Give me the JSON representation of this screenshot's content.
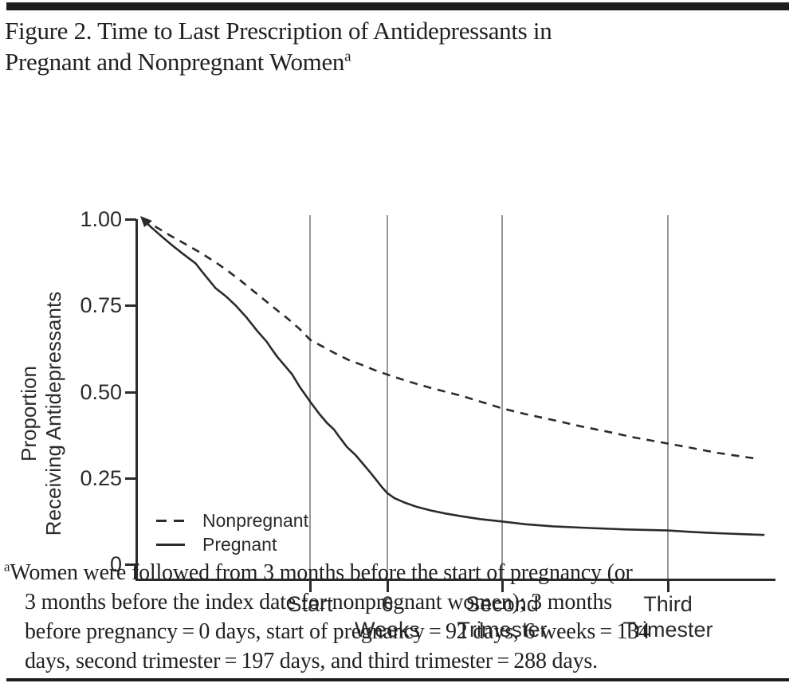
{
  "header": {
    "title_line1": "Figure 2. Time to Last Prescription of Antidepressants in",
    "title_line2": "Pregnant and Nonpregnant Women",
    "title_superscript": "a"
  },
  "chart_data": {
    "type": "line",
    "title": "Time to Last Prescription of Antidepressants in Pregnant and Nonpregnant Women",
    "ylabel_line1": "Proportion",
    "ylabel_line2": "Receiving Antidepressants",
    "x_unit": "days",
    "xlim": [
      0,
      347
    ],
    "ylim": [
      0,
      1
    ],
    "grid": "vertical gray lines at x ticks",
    "yticks": [
      {
        "value": 1.0,
        "label": "1.00"
      },
      {
        "value": 0.75,
        "label": "0.75"
      },
      {
        "value": 0.5,
        "label": "0.50"
      },
      {
        "value": 0.25,
        "label": "0.25"
      },
      {
        "value": 0.0,
        "label": "0"
      }
    ],
    "xticks": [
      {
        "day": 92,
        "line1": "Start",
        "line2": ""
      },
      {
        "day": 134,
        "line1": "6",
        "line2": "Weeks"
      },
      {
        "day": 197,
        "line1": "Second",
        "line2": "Trimester"
      },
      {
        "day": 288,
        "line1": "Third",
        "line2": "Trimester"
      }
    ],
    "legend": {
      "position": "inside lower-left",
      "entries": [
        {
          "label": "Nonpregnant",
          "style": "dashed"
        },
        {
          "label": "Pregnant",
          "style": "solid"
        }
      ]
    },
    "series": [
      {
        "name": "Nonpregnant",
        "style": "dashed",
        "points": [
          [
            0,
            1.0
          ],
          [
            8,
            0.975
          ],
          [
            15,
            0.953
          ],
          [
            22,
            0.932
          ],
          [
            31,
            0.905
          ],
          [
            40,
            0.875
          ],
          [
            46,
            0.853
          ],
          [
            53,
            0.825
          ],
          [
            60,
            0.795
          ],
          [
            67,
            0.765
          ],
          [
            74,
            0.735
          ],
          [
            80,
            0.71
          ],
          [
            86,
            0.682
          ],
          [
            92,
            0.65
          ],
          [
            99,
            0.63
          ],
          [
            106,
            0.61
          ],
          [
            113,
            0.592
          ],
          [
            120,
            0.578
          ],
          [
            127,
            0.563
          ],
          [
            134,
            0.55
          ],
          [
            142,
            0.536
          ],
          [
            150,
            0.523
          ],
          [
            158,
            0.511
          ],
          [
            166,
            0.5
          ],
          [
            175,
            0.488
          ],
          [
            186,
            0.47
          ],
          [
            197,
            0.452
          ],
          [
            210,
            0.435
          ],
          [
            225,
            0.418
          ],
          [
            240,
            0.4
          ],
          [
            255,
            0.384
          ],
          [
            270,
            0.367
          ],
          [
            288,
            0.35
          ],
          [
            300,
            0.338
          ],
          [
            315,
            0.323
          ],
          [
            330,
            0.311
          ],
          [
            338,
            0.305
          ]
        ]
      },
      {
        "name": "Pregnant",
        "style": "solid",
        "points": [
          [
            0,
            1.0
          ],
          [
            5,
            0.975
          ],
          [
            10,
            0.952
          ],
          [
            16,
            0.925
          ],
          [
            22,
            0.9
          ],
          [
            29,
            0.872
          ],
          [
            33,
            0.845
          ],
          [
            40,
            0.8
          ],
          [
            46,
            0.775
          ],
          [
            51,
            0.75
          ],
          [
            57,
            0.715
          ],
          [
            63,
            0.675
          ],
          [
            68,
            0.645
          ],
          [
            71,
            0.622
          ],
          [
            74,
            0.6
          ],
          [
            78,
            0.575
          ],
          [
            82,
            0.55
          ],
          [
            86,
            0.515
          ],
          [
            92,
            0.47
          ],
          [
            97,
            0.435
          ],
          [
            101,
            0.41
          ],
          [
            105,
            0.39
          ],
          [
            108,
            0.368
          ],
          [
            112,
            0.34
          ],
          [
            117,
            0.315
          ],
          [
            121,
            0.29
          ],
          [
            125,
            0.265
          ],
          [
            128,
            0.245
          ],
          [
            131,
            0.225
          ],
          [
            134,
            0.207
          ],
          [
            138,
            0.192
          ],
          [
            144,
            0.178
          ],
          [
            150,
            0.167
          ],
          [
            158,
            0.156
          ],
          [
            166,
            0.147
          ],
          [
            175,
            0.139
          ],
          [
            185,
            0.131
          ],
          [
            197,
            0.124
          ],
          [
            210,
            0.116
          ],
          [
            225,
            0.11
          ],
          [
            245,
            0.105
          ],
          [
            265,
            0.101
          ],
          [
            288,
            0.098
          ],
          [
            300,
            0.094
          ],
          [
            315,
            0.09
          ],
          [
            330,
            0.087
          ],
          [
            341,
            0.085
          ]
        ]
      }
    ]
  },
  "footnote": {
    "marker": "a",
    "lines": [
      "Women were followed from 3 months before the start of pregnancy (or",
      "3 months before the index date for nonpregnant women); 3 months",
      "before pregnancy = 0 days, start of pregnancy = 92 days, 6 weeks = 134",
      "days, second trimester = 197 days, and third trimester = 288 days."
    ]
  },
  "colors": {
    "ink": "#231f20",
    "curve": "#2b2b2b",
    "grid": "#979797",
    "rule": "#1d1d1f",
    "background": "#ffffff"
  }
}
